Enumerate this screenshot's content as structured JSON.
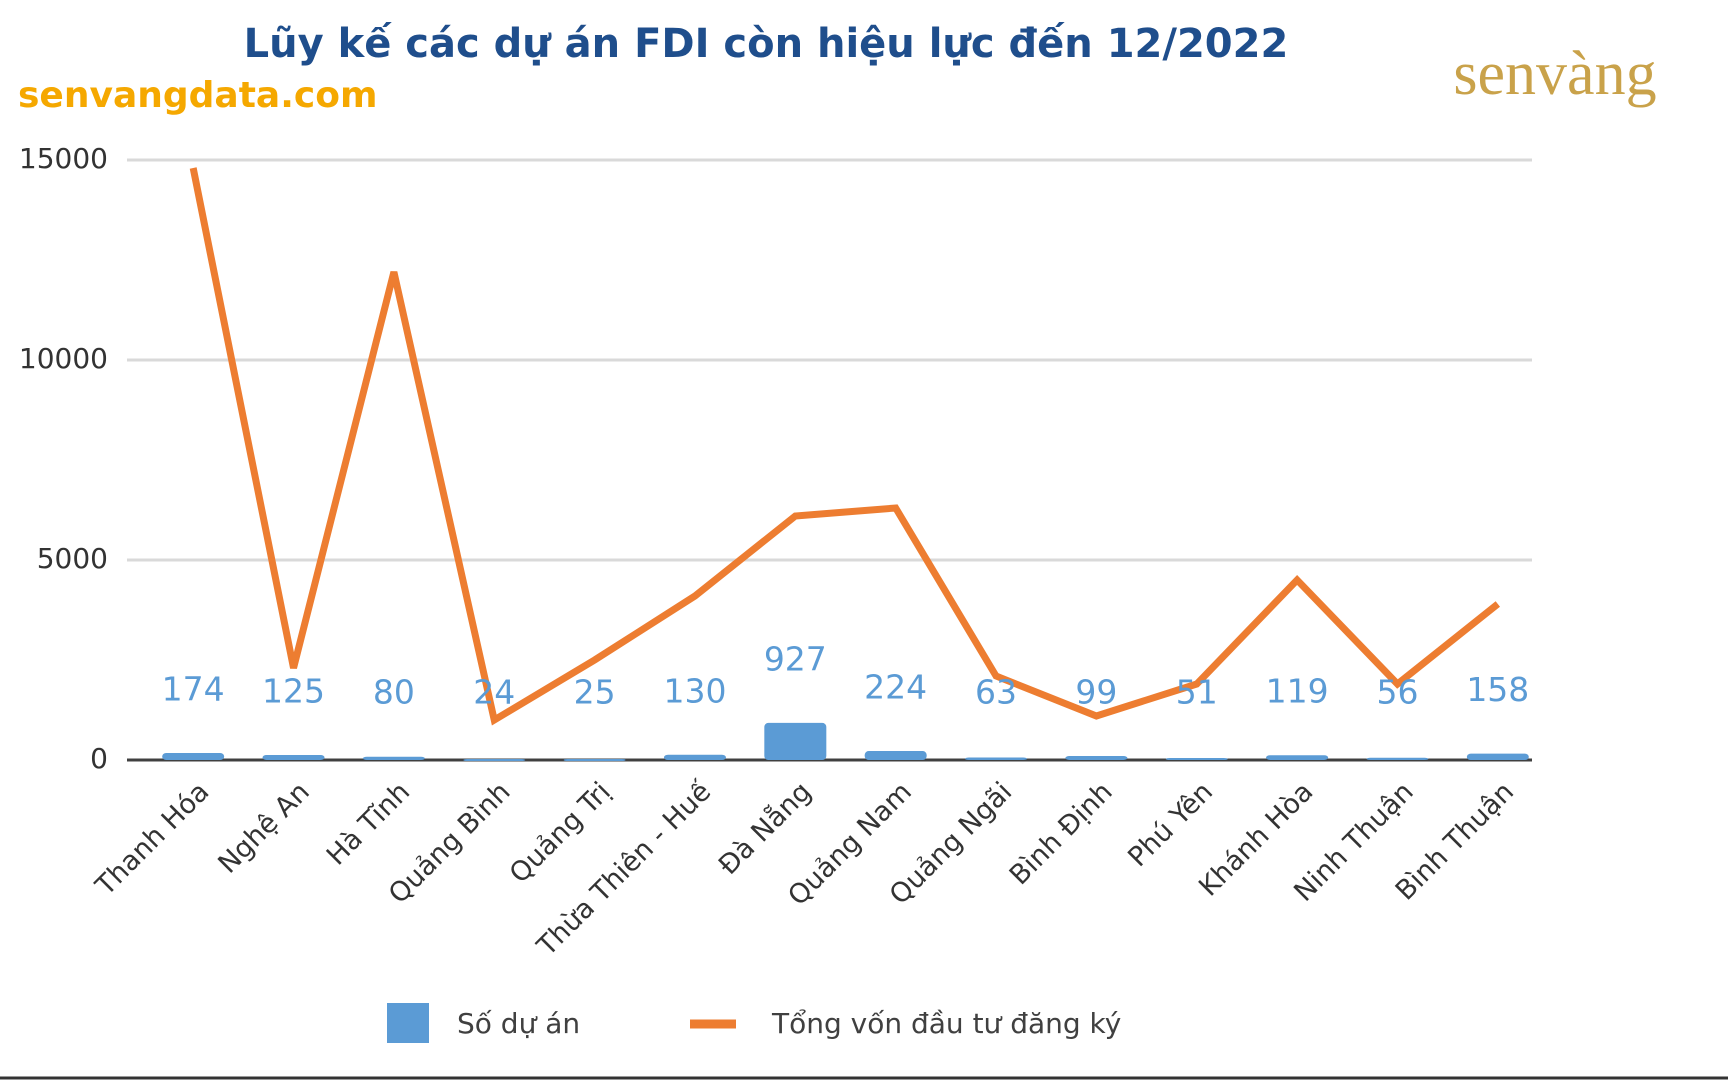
{
  "chart_data": {
    "type": "bar",
    "title": "Lũy kế các dự án FDI còn hiệu lực đến 12/2022",
    "categories": [
      "Thanh Hóa",
      "Nghệ An",
      "Hà Tĩnh",
      "Quảng Bình",
      "Quảng Trị",
      "Thừa Thiên - Huế",
      "Đà Nẵng",
      "Quảng Nam",
      "Quảng Ngãi",
      "Bình Định",
      "Phú Yên",
      "Khánh Hòa",
      "Ninh Thuận",
      "Bình Thuận"
    ],
    "series": [
      {
        "name": "Số dự án",
        "type": "bar",
        "color": "#5b9bd5",
        "values": [
          174,
          125,
          80,
          24,
          25,
          130,
          927,
          224,
          63,
          99,
          51,
          119,
          56,
          158
        ]
      },
      {
        "name": "Tổng vốn đầu tư đăng ký",
        "type": "line",
        "color": "#ed7d31",
        "values": [
          14800,
          2300,
          12200,
          1000,
          2500,
          4100,
          6100,
          6300,
          2100,
          1100,
          1900,
          4500,
          1900,
          3900
        ]
      }
    ],
    "ylim": [
      0,
      15000
    ],
    "yticks": [
      0,
      5000,
      10000,
      15000
    ],
    "grid": true,
    "legend": "bottom"
  },
  "brand": {
    "website": "senvangdata.com",
    "logo": "senvàng"
  }
}
